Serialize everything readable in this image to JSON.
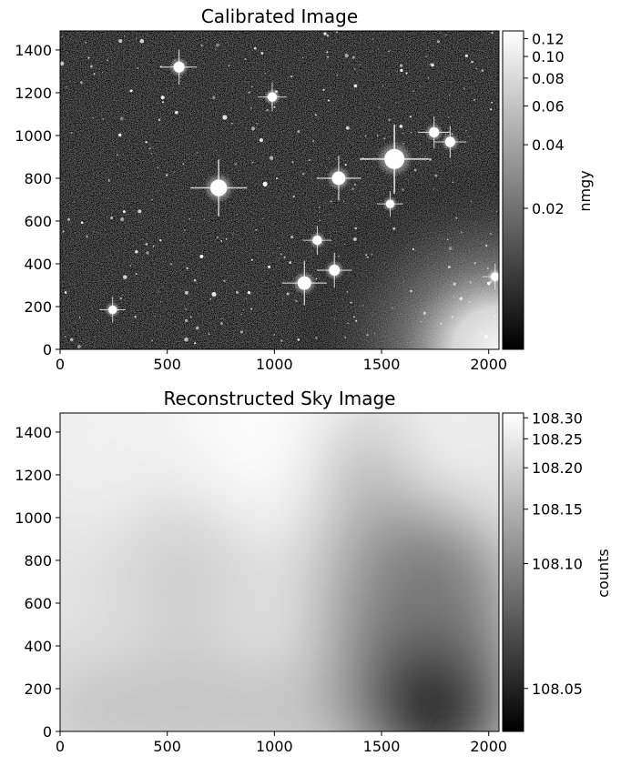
{
  "chart_data": [
    {
      "type": "heatmap",
      "title": "Calibrated Image",
      "xlabel": "",
      "ylabel": "",
      "xlim": [
        0,
        2048
      ],
      "ylim": [
        0,
        1489
      ],
      "x_ticks": [
        "0",
        "500",
        "1000",
        "1500",
        "2000"
      ],
      "y_ticks": [
        "0",
        "200",
        "400",
        "600",
        "800",
        "1000",
        "1200",
        "1400"
      ],
      "x_tick_values": [
        0,
        500,
        1000,
        1500,
        2000
      ],
      "y_tick_values": [
        0,
        200,
        400,
        600,
        800,
        1000,
        1200,
        1400
      ],
      "colormap": "gray",
      "colorbar": {
        "label": "nmgy",
        "scale": "asinh",
        "range": [
          0.0,
          0.13
        ],
        "ticks": [
          "0.02",
          "0.04",
          "0.06",
          "0.08",
          "0.10",
          "0.12"
        ],
        "tick_values": [
          0.02,
          0.04,
          0.06,
          0.08,
          0.1,
          0.12
        ]
      },
      "content": "star field with scattered light in lower-right corner",
      "bright_sources": [
        {
          "x": 1560,
          "y": 890,
          "brightness": 1.0
        },
        {
          "x": 740,
          "y": 755,
          "brightness": 0.8
        },
        {
          "x": 1300,
          "y": 800,
          "brightness": 0.6
        },
        {
          "x": 1140,
          "y": 310,
          "brightness": 0.6
        },
        {
          "x": 555,
          "y": 1320,
          "brightness": 0.45
        },
        {
          "x": 1280,
          "y": 370,
          "brightness": 0.45
        },
        {
          "x": 1745,
          "y": 1015,
          "brightness": 0.4
        },
        {
          "x": 1820,
          "y": 970,
          "brightness": 0.4
        },
        {
          "x": 1200,
          "y": 510,
          "brightness": 0.35
        },
        {
          "x": 990,
          "y": 1180,
          "brightness": 0.35
        },
        {
          "x": 245,
          "y": 185,
          "brightness": 0.3
        },
        {
          "x": 1540,
          "y": 680,
          "brightness": 0.3
        },
        {
          "x": 2030,
          "y": 340,
          "brightness": 0.3
        }
      ]
    },
    {
      "type": "heatmap",
      "title": "Reconstructed Sky Image",
      "xlabel": "",
      "ylabel": "",
      "xlim": [
        0,
        2048
      ],
      "ylim": [
        0,
        1489
      ],
      "x_ticks": [
        "0",
        "500",
        "1000",
        "1500",
        "2000"
      ],
      "y_ticks": [
        "0",
        "200",
        "400",
        "600",
        "800",
        "1000",
        "1200",
        "1400"
      ],
      "x_tick_values": [
        0,
        500,
        1000,
        1500,
        2000
      ],
      "y_tick_values": [
        0,
        200,
        400,
        600,
        800,
        1000,
        1200,
        1400
      ],
      "colormap": "gray",
      "colorbar": {
        "label": "counts",
        "scale": "nonlinear",
        "range": [
          108.025,
          108.31
        ],
        "ticks": [
          "108.05",
          "108.10",
          "108.15",
          "108.20",
          "108.25",
          "108.30"
        ],
        "tick_values": [
          108.05,
          108.1,
          108.15,
          108.2,
          108.25,
          108.3
        ]
      },
      "content": "smooth sky background, brightest near top-center, darkest near bottom-right",
      "brightest_region": {
        "x": 1000,
        "y": 1400
      },
      "darkest_region": {
        "x": 1730,
        "y": 40
      }
    }
  ]
}
